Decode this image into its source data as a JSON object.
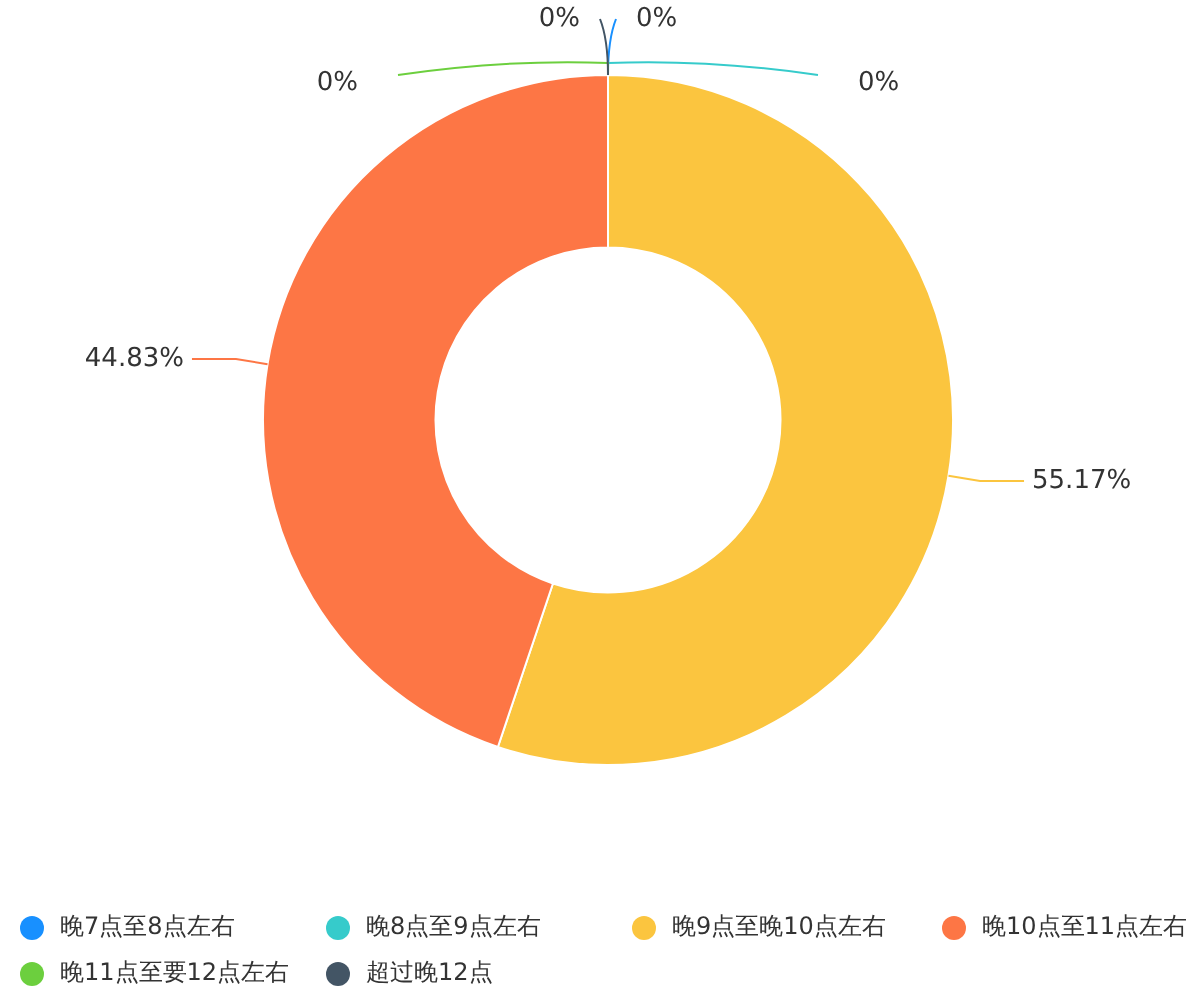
{
  "chart_data": {
    "type": "donut",
    "categories": [
      "晚7点至8点左右",
      "晚8点至9点左右",
      "晚9点至晚10点左右",
      "晚10点至11点左右",
      "晚11点至要12点左右",
      "超过晚12点"
    ],
    "values": [
      0,
      0,
      55.17,
      44.83,
      0,
      0
    ],
    "colors": [
      "#1890ff",
      "#36cbcb",
      "#fbc53f",
      "#fd7645",
      "#6ccf3e",
      "#435565"
    ],
    "value_labels": [
      "0%",
      "0%",
      "55.17%",
      "44.83%",
      "0%",
      "0%"
    ],
    "legend": "bottom"
  }
}
